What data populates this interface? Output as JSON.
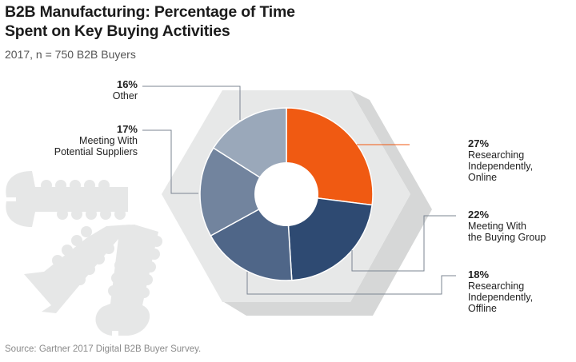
{
  "title": "B2B Manufacturing: Percentage of Time Spent on Key Buying Activities",
  "subtitle": "2017, n = 750 B2B Buyers",
  "source": "Source: Gartner 2017 Digital B2B Buyer Survey.",
  "chart_data": {
    "type": "pie",
    "subtype": "donut",
    "title": "B2B Manufacturing: Percentage of Time Spent on Key Buying Activities",
    "subtitle": "2017, n = 750 B2B Buyers",
    "unit": "%",
    "slices": [
      {
        "label": "Researching Independently, Online",
        "value": 27,
        "color": "#f05a12",
        "display": "27%",
        "lines": [
          "Researching",
          "Independently,",
          "Online"
        ]
      },
      {
        "label": "Meeting With the Buying Group",
        "value": 22,
        "color": "#2e4a72",
        "display": "22%",
        "lines": [
          "Meeting With",
          "the Buying Group"
        ]
      },
      {
        "label": "Researching Independently, Offline",
        "value": 18,
        "color": "#4f6688",
        "display": "18%",
        "lines": [
          "Researching",
          "Independently,",
          "Offline"
        ]
      },
      {
        "label": "Meeting With Potential Suppliers",
        "value": 17,
        "color": "#72849e",
        "display": "17%",
        "lines": [
          "Meeting With",
          "Potential Suppliers"
        ]
      },
      {
        "label": "Other",
        "value": 16,
        "color": "#9aa8ba",
        "display": "16%",
        "lines": [
          "Other"
        ]
      }
    ],
    "start_angle": "12 o'clock",
    "direction": "clockwise",
    "legend": "callouts"
  },
  "colors": {
    "hexagon_front": "#e7e8e8",
    "hexagon_shadow": "#d6d7d7",
    "screws": "#e6e7e7",
    "leader_line": "#7b8592",
    "leader_accent": "#f05a12"
  }
}
